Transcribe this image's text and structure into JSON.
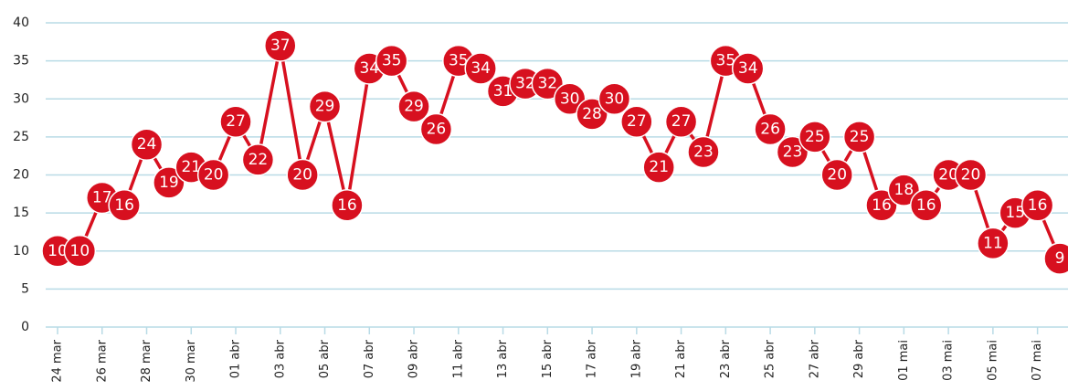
{
  "chart_data": {
    "type": "line",
    "categories": [
      "24 mar",
      null,
      "26 mar",
      null,
      "28 mar",
      null,
      "30 mar",
      null,
      "01 abr",
      null,
      "03 abr",
      null,
      "05 abr",
      null,
      "07 abr",
      null,
      "09 abr",
      null,
      "11 abr",
      null,
      "13 abr",
      null,
      "15 abr",
      null,
      "17 abr",
      null,
      "19 abr",
      null,
      "21 abr",
      null,
      "23 abr",
      null,
      "25 abr",
      null,
      "27 abr",
      null,
      "29 abr",
      null,
      "01 mai",
      null,
      "03 mai",
      null,
      "05 mai",
      null,
      "07 mai",
      null
    ],
    "series": [
      {
        "color": "#d7101f",
        "values": [
          10,
          10,
          17,
          16,
          24,
          19,
          21,
          20,
          27,
          22,
          37,
          20,
          29,
          16,
          34,
          35,
          29,
          26,
          35,
          34,
          31,
          32,
          32,
          30,
          28,
          30,
          27,
          21,
          27,
          23,
          35,
          34,
          26,
          23,
          25,
          20,
          25,
          16,
          18,
          16,
          20,
          20,
          11,
          15,
          16,
          9
        ]
      }
    ],
    "ylim": [
      0,
      40
    ],
    "yticks": [
      0,
      5,
      10,
      15,
      20,
      25,
      30,
      35,
      40
    ],
    "grid": true
  }
}
